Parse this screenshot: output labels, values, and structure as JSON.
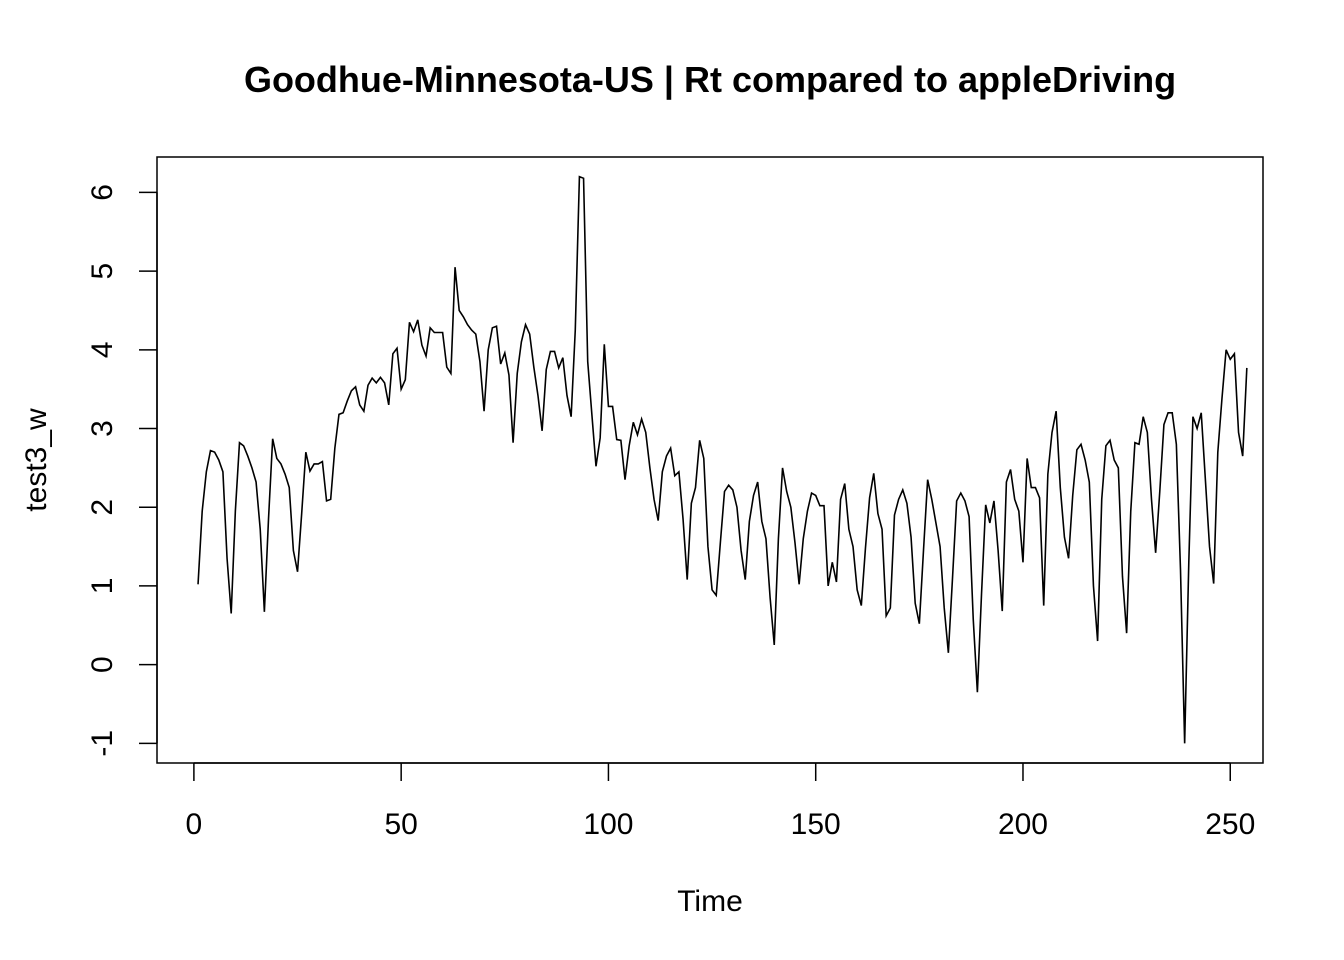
{
  "chart_data": {
    "type": "line",
    "title": "Goodhue-Minnesota-US | Rt compared to appleDriving",
    "xlabel": "Time",
    "ylabel": "test3_w",
    "xlim": [
      -8.9,
      257.9
    ],
    "ylim": [
      -1.25,
      6.45
    ],
    "x_ticks": [
      "0",
      "50",
      "100",
      "150",
      "200",
      "250"
    ],
    "y_ticks": [
      "-1",
      "0",
      "1",
      "2",
      "3",
      "4",
      "5",
      "6"
    ],
    "grid": false,
    "legend": "none",
    "line_color": "#000000",
    "series": [
      {
        "x_start": 1,
        "values": [
          1.02,
          1.95,
          2.45,
          2.72,
          2.7,
          2.6,
          2.45,
          1.35,
          0.65,
          1.95,
          2.82,
          2.78,
          2.65,
          2.5,
          2.32,
          1.72,
          0.67,
          1.85,
          2.87,
          2.62,
          2.55,
          2.42,
          2.25,
          1.45,
          1.18,
          1.92,
          2.7,
          2.46,
          2.55,
          2.55,
          2.58,
          2.08,
          2.1,
          2.75,
          3.18,
          3.2,
          3.35,
          3.48,
          3.53,
          3.3,
          3.22,
          3.55,
          3.64,
          3.58,
          3.65,
          3.58,
          3.3,
          3.95,
          4.02,
          3.5,
          3.62,
          4.35,
          4.23,
          4.38,
          4.06,
          3.92,
          4.28,
          4.22,
          4.22,
          4.22,
          3.78,
          3.7,
          5.05,
          4.5,
          4.42,
          4.32,
          4.25,
          4.2,
          3.85,
          3.22,
          4.0,
          4.28,
          4.3,
          3.82,
          3.96,
          3.68,
          2.82,
          3.7,
          4.1,
          4.32,
          4.2,
          3.78,
          3.42,
          2.97,
          3.75,
          3.98,
          3.98,
          3.77,
          3.9,
          3.42,
          3.15,
          4.25,
          6.2,
          6.18,
          3.85,
          3.18,
          2.52,
          2.88,
          4.07,
          3.28,
          3.28,
          2.86,
          2.85,
          2.35,
          2.78,
          3.08,
          2.92,
          3.12,
          2.95,
          2.5,
          2.1,
          1.83,
          2.45,
          2.65,
          2.75,
          2.4,
          2.45,
          1.85,
          1.08,
          2.05,
          2.25,
          2.85,
          2.62,
          1.5,
          0.95,
          0.88,
          1.55,
          2.2,
          2.28,
          2.22,
          2.0,
          1.45,
          1.08,
          1.82,
          2.15,
          2.32,
          1.82,
          1.6,
          0.85,
          0.25,
          1.6,
          2.5,
          2.2,
          2.0,
          1.55,
          1.02,
          1.6,
          1.95,
          2.18,
          2.15,
          2.02,
          2.02,
          1.0,
          1.3,
          1.05,
          2.1,
          2.3,
          1.72,
          1.5,
          0.95,
          0.75,
          1.48,
          2.12,
          2.43,
          1.92,
          1.72,
          0.62,
          0.72,
          1.9,
          2.1,
          2.22,
          2.05,
          1.62,
          0.78,
          0.52,
          1.45,
          2.35,
          2.1,
          1.8,
          1.5,
          0.72,
          0.15,
          1.1,
          2.08,
          2.18,
          2.08,
          1.88,
          0.58,
          -0.35,
          0.9,
          2.03,
          1.8,
          2.08,
          1.45,
          0.68,
          2.32,
          2.48,
          2.1,
          1.95,
          1.3,
          2.62,
          2.25,
          2.25,
          2.12,
          0.75,
          2.42,
          2.95,
          3.22,
          2.25,
          1.62,
          1.35,
          2.15,
          2.73,
          2.8,
          2.6,
          2.32,
          1.0,
          0.3,
          2.1,
          2.78,
          2.85,
          2.6,
          2.5,
          1.12,
          0.4,
          1.95,
          2.82,
          2.8,
          3.15,
          2.95,
          2.1,
          1.42,
          2.2,
          3.05,
          3.2,
          3.2,
          2.8,
          1.2,
          -1.0,
          1.3,
          3.15,
          3.0,
          3.2,
          2.35,
          1.5,
          1.03,
          2.7,
          3.38,
          4.0,
          3.88,
          3.95,
          2.95,
          2.65,
          3.77
        ]
      }
    ]
  }
}
